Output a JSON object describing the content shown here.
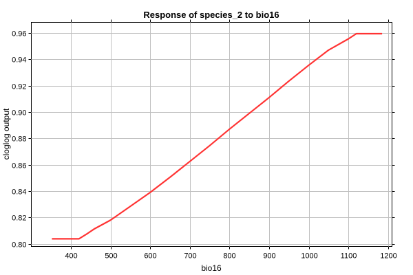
{
  "chart_data": {
    "type": "line",
    "title": "Response of species_2 to bio16",
    "xlabel": "bio16",
    "ylabel": "cloglog output",
    "xlim": [
      300,
      1210
    ],
    "ylim": [
      0.798,
      0.968
    ],
    "xticks": [
      400,
      500,
      600,
      700,
      800,
      900,
      1000,
      1100,
      1200
    ],
    "yticks": [
      0.8,
      0.82,
      0.84,
      0.86,
      0.88,
      0.9,
      0.92,
      0.94,
      0.96
    ],
    "xtick_labels": [
      "400",
      "500",
      "600",
      "700",
      "800",
      "900",
      "1000",
      "1100",
      "1200"
    ],
    "ytick_labels": [
      "0.80",
      "0.82",
      "0.84",
      "0.86",
      "0.88",
      "0.90",
      "0.92",
      "0.94",
      "0.96"
    ],
    "grid": true,
    "series": [
      {
        "color": "#ff3333",
        "x": [
          352,
          420,
          440,
          460,
          500,
          550,
          600,
          650,
          700,
          750,
          800,
          850,
          900,
          950,
          1000,
          1050,
          1100,
          1120,
          1185
        ],
        "y": [
          0.8038,
          0.8038,
          0.8075,
          0.8115,
          0.818,
          0.8285,
          0.839,
          0.8505,
          0.8625,
          0.8745,
          0.887,
          0.899,
          0.911,
          0.9235,
          0.9355,
          0.947,
          0.9555,
          0.9594,
          0.9594
        ]
      }
    ]
  }
}
